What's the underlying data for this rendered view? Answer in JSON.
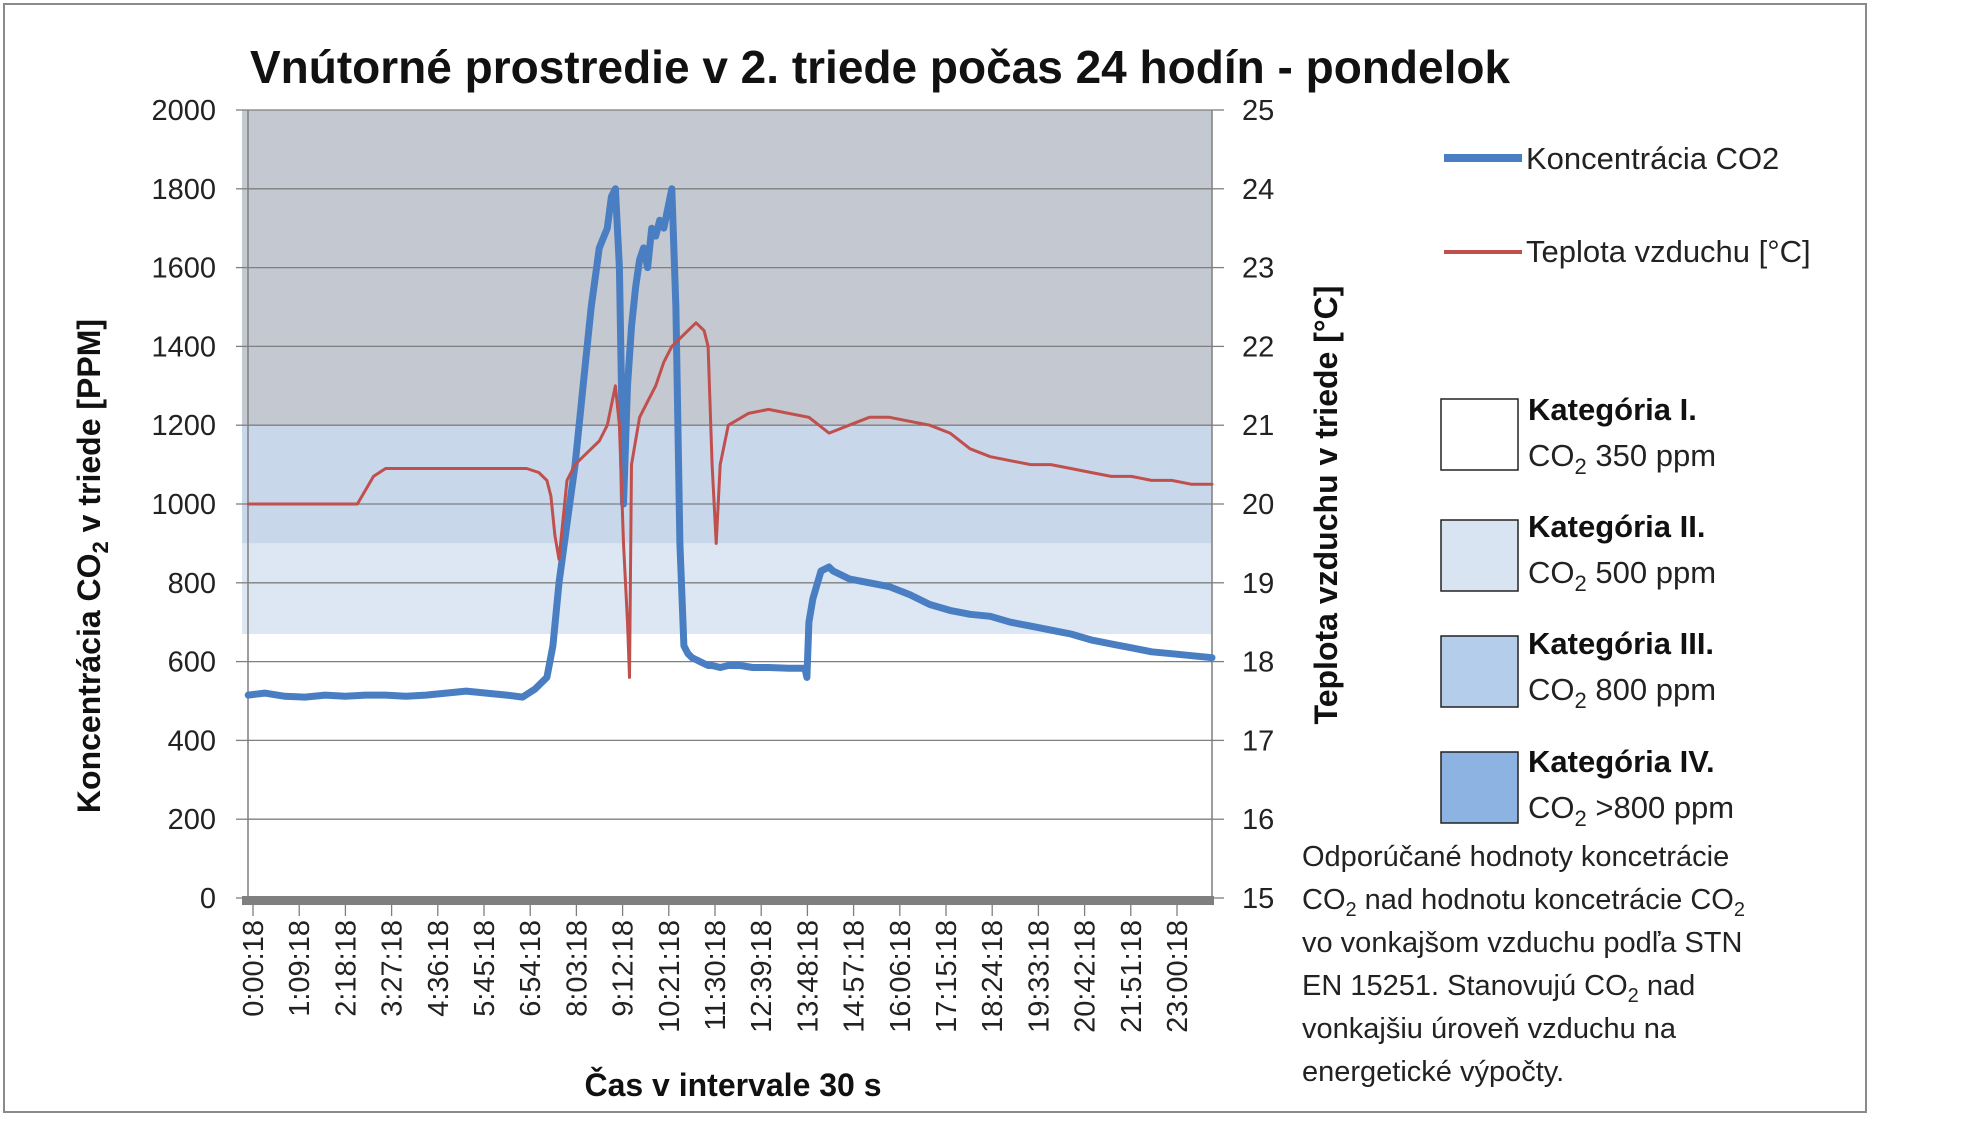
{
  "chart_data": {
    "type": "line",
    "title": "Vnútorné prostredie v 2. triede počas 24 hodín - pondelok",
    "xlabel": "Čas v intervale 30 s",
    "ylabel_left": "Koncentrácia CO2 v triede [PPM]",
    "ylabel_right": "Teplota vzduchu v triede [°C]",
    "ylim_left": [
      0,
      2000
    ],
    "ylim_right": [
      15,
      25
    ],
    "yticks_left": [
      "0",
      "200",
      "400",
      "600",
      "800",
      "1000",
      "1200",
      "1400",
      "1600",
      "1800",
      "2000"
    ],
    "yticks_right": [
      "15",
      "16",
      "17",
      "18",
      "19",
      "20",
      "21",
      "22",
      "23",
      "24",
      "25"
    ],
    "x_range_hours": [
      0.086,
      24.0
    ],
    "xticks": [
      "0:00:18",
      "1:09:18",
      "2:18:18",
      "3:27:18",
      "4:36:18",
      "5:45:18",
      "6:54:18",
      "8:03:18",
      "9:12:18",
      "10:21:18",
      "11:30:18",
      "12:39:18",
      "13:48:18",
      "14:57:18",
      "16:06:18",
      "17:15:18",
      "18:24:18",
      "19:33:18",
      "20:42:18",
      "21:51:18",
      "23:00:18"
    ],
    "bands": [
      {
        "name": "Kategória IV.",
        "from": 1200,
        "to": 2000,
        "color": "#c4c8d0"
      },
      {
        "name": "Kategória III.",
        "from": 900,
        "to": 1200,
        "color": "#c9d7ea"
      },
      {
        "name": "Kategória II.",
        "from": 670,
        "to": 900,
        "color": "#dde7f3"
      }
    ],
    "series": [
      {
        "name": "Koncentrácia CO2",
        "axis": "left",
        "color": "#4a7ec3",
        "x": [
          0.09,
          0.5,
          1.0,
          1.5,
          2.0,
          2.5,
          3.0,
          3.5,
          4.0,
          4.5,
          5.0,
          5.5,
          6.0,
          6.5,
          6.9,
          7.2,
          7.5,
          7.65,
          7.8,
          8.0,
          8.2,
          8.4,
          8.6,
          8.8,
          9.0,
          9.1,
          9.2,
          9.3,
          9.4,
          9.5,
          9.6,
          9.7,
          9.8,
          9.9,
          10.0,
          10.1,
          10.2,
          10.3,
          10.4,
          10.5,
          10.6,
          10.7,
          10.8,
          10.9,
          11.0,
          11.1,
          11.2,
          11.3,
          11.4,
          11.5,
          11.6,
          11.8,
          12.0,
          12.3,
          12.6,
          13.0,
          13.5,
          13.9,
          13.95,
          14.0,
          14.1,
          14.3,
          14.5,
          14.6,
          14.8,
          15.0,
          15.5,
          16.0,
          16.5,
          17.0,
          17.5,
          18.0,
          18.5,
          19.0,
          19.5,
          20.0,
          20.5,
          21.0,
          21.5,
          22.0,
          22.5,
          23.0,
          23.5,
          24.0
        ],
        "y": [
          515,
          520,
          512,
          510,
          515,
          512,
          515,
          515,
          512,
          515,
          520,
          525,
          520,
          515,
          510,
          530,
          560,
          640,
          800,
          950,
          1100,
          1300,
          1500,
          1650,
          1700,
          1780,
          1800,
          1600,
          1000,
          1300,
          1450,
          1550,
          1620,
          1650,
          1600,
          1700,
          1680,
          1720,
          1700,
          1750,
          1800,
          1500,
          900,
          640,
          620,
          610,
          605,
          600,
          595,
          590,
          590,
          585,
          590,
          590,
          585,
          585,
          583,
          583,
          560,
          700,
          760,
          830,
          840,
          830,
          820,
          810,
          800,
          790,
          770,
          745,
          730,
          720,
          715,
          700,
          690,
          680,
          670,
          655,
          645,
          635,
          625,
          620,
          615,
          610
        ]
      },
      {
        "name": "Teplota vzduchu [°C]",
        "axis": "right",
        "color": "#c0504d",
        "x": [
          0.09,
          1.0,
          2.0,
          2.8,
          3.2,
          3.5,
          4.0,
          4.5,
          5.0,
          5.5,
          6.0,
          6.5,
          7.0,
          7.3,
          7.5,
          7.6,
          7.7,
          7.8,
          8.0,
          8.2,
          8.4,
          8.6,
          8.8,
          9.0,
          9.2,
          9.3,
          9.4,
          9.5,
          9.55,
          9.6,
          9.8,
          10.0,
          10.2,
          10.4,
          10.6,
          10.8,
          11.0,
          11.2,
          11.4,
          11.5,
          11.6,
          11.7,
          11.8,
          12.0,
          12.5,
          13.0,
          13.5,
          14.0,
          14.5,
          15.0,
          15.5,
          16.0,
          16.5,
          17.0,
          17.5,
          18.0,
          18.5,
          19.0,
          19.5,
          20.0,
          20.5,
          21.0,
          21.5,
          22.0,
          22.5,
          23.0,
          23.5,
          24.0
        ],
        "y": [
          20.0,
          20.0,
          20.0,
          20.0,
          20.35,
          20.45,
          20.45,
          20.45,
          20.45,
          20.45,
          20.45,
          20.45,
          20.45,
          20.4,
          20.3,
          20.1,
          19.6,
          19.3,
          20.3,
          20.5,
          20.6,
          20.7,
          20.8,
          21.0,
          21.5,
          21.0,
          19.5,
          18.5,
          17.8,
          20.5,
          21.1,
          21.3,
          21.5,
          21.8,
          22.0,
          22.1,
          22.2,
          22.3,
          22.2,
          22.0,
          20.5,
          19.5,
          20.5,
          21.0,
          21.15,
          21.2,
          21.15,
          21.1,
          20.9,
          21.0,
          21.1,
          21.1,
          21.05,
          21.0,
          20.9,
          20.7,
          20.6,
          20.55,
          20.5,
          20.5,
          20.45,
          20.4,
          20.35,
          20.35,
          20.3,
          20.3,
          20.25,
          20.25
        ]
      }
    ]
  },
  "legend": {
    "co2_label": "Koncentrácia CO2",
    "temp_label": "Teplota vzduchu [°C]",
    "categories": [
      {
        "title": "Kategória I.",
        "value": "350 ppm",
        "color": "#ffffff"
      },
      {
        "title": "Kategória II.",
        "value": "500 ppm",
        "color": "#d9e4f3"
      },
      {
        "title": "Kategória III.",
        "value": "800 ppm",
        "color": "#b4cdeb"
      },
      {
        "title": "Kategória IV.",
        "value": ">800 ppm",
        "color": "#8db3e2"
      }
    ],
    "co2_prefix": "CO",
    "co2_sub": "2"
  },
  "note": {
    "line1": "Odporúčané hodnoty koncetrácie",
    "line2a": "CO",
    "line2b": " nad hodnotu koncetrácie CO",
    "line3": "vo vonkajšom vzduchu podľa STN",
    "line4a": "EN 15251. Stanovujú CO",
    "line4b": " nad",
    "line5": "vonkajšiu úroveň vzduchu na",
    "line6": "energetické výpočty.",
    "sub": "2"
  },
  "colors": {
    "co2_line": "#4a7ec3",
    "temp_line": "#c0504d",
    "gridline": "#7f7f7f",
    "x_axis_bar": "#7f7f7f"
  }
}
